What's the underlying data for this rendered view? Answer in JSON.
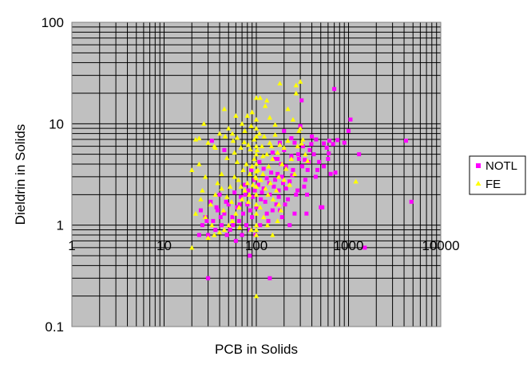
{
  "chart_data": {
    "type": "scatter",
    "xlabel": "PCB in Solids",
    "ylabel": "Dieldrin in Solids",
    "x_scale": "log",
    "y_scale": "log",
    "xlim": [
      1,
      10000
    ],
    "ylim": [
      0.1,
      100
    ],
    "x_tick_labels": [
      "1",
      "10",
      "100",
      "1000",
      "10000"
    ],
    "y_tick_labels": [
      "0.1",
      "1",
      "10",
      "100"
    ],
    "grid": true,
    "plot_background": "#c0c0c0",
    "legend_position": "right",
    "series": [
      {
        "name": "NOTL",
        "marker": "square",
        "color": "#ff00ff",
        "points": [
          [
            30,
            0.3
          ],
          [
            140,
            0.3
          ],
          [
            85,
            0.5
          ],
          [
            1500,
            0.6
          ],
          [
            4200,
            6.8
          ],
          [
            4800,
            1.7
          ],
          [
            1300,
            5.0
          ],
          [
            1050,
            11.0
          ],
          [
            1000,
            8.5
          ],
          [
            900,
            6.5
          ],
          [
            700,
            22.0
          ],
          [
            680,
            6.3
          ],
          [
            640,
            3.2
          ],
          [
            620,
            6.8
          ],
          [
            600,
            4.5
          ],
          [
            580,
            5.8
          ],
          [
            540,
            3.8
          ],
          [
            520,
            1.5
          ],
          [
            500,
            1.5
          ],
          [
            480,
            4.2
          ],
          [
            460,
            3.5
          ],
          [
            440,
            3.0
          ],
          [
            400,
            7.5
          ],
          [
            380,
            5.5
          ],
          [
            360,
            3.5
          ],
          [
            340,
            2.8
          ],
          [
            320,
            6.0
          ],
          [
            310,
            17.0
          ],
          [
            300,
            9.5
          ],
          [
            290,
            4.5
          ],
          [
            280,
            2.2
          ],
          [
            260,
            6.5
          ],
          [
            250,
            3.5
          ],
          [
            240,
            4.8
          ],
          [
            230,
            2.7
          ],
          [
            220,
            1.8
          ],
          [
            210,
            3.8
          ],
          [
            200,
            5.5
          ],
          [
            195,
            2.6
          ],
          [
            190,
            1.2
          ],
          [
            185,
            4.0
          ],
          [
            180,
            6.5
          ],
          [
            175,
            2.2
          ],
          [
            170,
            3.2
          ],
          [
            165,
            1.6
          ],
          [
            160,
            4.5
          ],
          [
            155,
            2.4
          ],
          [
            150,
            1.4
          ],
          [
            145,
            3.3
          ],
          [
            140,
            2.0
          ],
          [
            135,
            1.1
          ],
          [
            130,
            2.9
          ],
          [
            125,
            1.7
          ],
          [
            120,
            3.6
          ],
          [
            115,
            2.1
          ],
          [
            110,
            1.0
          ],
          [
            108,
            4.2
          ],
          [
            105,
            2.5
          ],
          [
            100,
            1.5
          ],
          [
            98,
            0.8
          ],
          [
            95,
            2.8
          ],
          [
            92,
            1.9
          ],
          [
            90,
            1.2
          ],
          [
            88,
            3.5
          ],
          [
            85,
            0.9
          ],
          [
            82,
            2.2
          ],
          [
            80,
            1.6
          ],
          [
            78,
            1.0
          ],
          [
            75,
            2.5
          ],
          [
            72,
            1.3
          ],
          [
            70,
            0.8
          ],
          [
            68,
            1.9
          ],
          [
            65,
            1.1
          ],
          [
            62,
            1.5
          ],
          [
            60,
            0.7
          ],
          [
            58,
            2.1
          ],
          [
            55,
            1.2
          ],
          [
            52,
            0.9
          ],
          [
            50,
            1.6
          ],
          [
            48,
            0.8
          ],
          [
            45,
            1.3
          ],
          [
            42,
            1.0
          ],
          [
            40,
            2.0
          ],
          [
            38,
            1.4
          ],
          [
            36,
            0.9
          ],
          [
            34,
            1.1
          ],
          [
            32,
            1.7
          ],
          [
            30,
            0.8
          ],
          [
            28,
            1.2
          ],
          [
            26,
            1.0
          ],
          [
            25,
            1.4
          ],
          [
            24,
            0.8
          ],
          [
            33,
            6.8
          ],
          [
            45,
            5.5
          ],
          [
            260,
            1.3
          ],
          [
            230,
            1.0
          ],
          [
            350,
            1.3
          ],
          [
            200,
            8.5
          ],
          [
            240,
            7.2
          ],
          [
            270,
            2.0
          ],
          [
            330,
            2.4
          ],
          [
            370,
            4.2
          ],
          [
            420,
            5.0
          ],
          [
            210,
            2.3
          ],
          [
            180,
            1.4
          ],
          [
            160,
            2.8
          ],
          [
            150,
            5.2
          ],
          [
            190,
            3.0
          ],
          [
            170,
            4.5
          ],
          [
            130,
            1.3
          ],
          [
            120,
            2.3
          ],
          [
            205,
            1.6
          ],
          [
            245,
            3.1
          ],
          [
            285,
            5.0
          ],
          [
            315,
            3.8
          ],
          [
            335,
            4.4
          ],
          [
            355,
            2.0
          ],
          [
            395,
            6.3
          ],
          [
            445,
            7.0
          ],
          [
            540,
            6.4
          ],
          [
            610,
            5.1
          ],
          [
            720,
            3.3
          ],
          [
            760,
            6.9
          ],
          [
            175,
            1.9
          ],
          [
            138,
            2.6
          ],
          [
            112,
            1.8
          ],
          [
            96,
            2.2
          ],
          [
            86,
            1.4
          ],
          [
            76,
            2.0
          ],
          [
            66,
            1.6
          ],
          [
            56,
            1.0
          ],
          [
            47,
            1.7
          ],
          [
            41,
            1.2
          ],
          [
            37,
            1.5
          ],
          [
            29,
            1.1
          ]
        ]
      },
      {
        "name": "FE",
        "marker": "triangle",
        "color": "#ffff00",
        "points": [
          [
            20,
            0.6
          ],
          [
            100,
            0.2
          ],
          [
            1200,
            2.7
          ],
          [
            270,
            24.0
          ],
          [
            300,
            26.0
          ],
          [
            180,
            25.0
          ],
          [
            110,
            18.0
          ],
          [
            100,
            18.0
          ],
          [
            90,
            13.0
          ],
          [
            130,
            17.0
          ],
          [
            125,
            15.0
          ],
          [
            80,
            12.0
          ],
          [
            60,
            12.0
          ],
          [
            55,
            8.0
          ],
          [
            70,
            10.0
          ],
          [
            45,
            14.0
          ],
          [
            22,
            7.0
          ],
          [
            24,
            7.2
          ],
          [
            27,
            10.0
          ],
          [
            30,
            6.5
          ],
          [
            35,
            6.0
          ],
          [
            40,
            8.0
          ],
          [
            46,
            7.5
          ],
          [
            50,
            9.0
          ],
          [
            56,
            6.8
          ],
          [
            62,
            7.3
          ],
          [
            68,
            5.8
          ],
          [
            75,
            8.5
          ],
          [
            82,
            6.2
          ],
          [
            88,
            9.5
          ],
          [
            95,
            7.0
          ],
          [
            102,
            5.5
          ],
          [
            108,
            8.0
          ],
          [
            115,
            6.0
          ],
          [
            122,
            7.5
          ],
          [
            130,
            5.0
          ],
          [
            140,
            6.5
          ],
          [
            150,
            4.5
          ],
          [
            160,
            7.8
          ],
          [
            170,
            5.2
          ],
          [
            180,
            6.2
          ],
          [
            190,
            4.0
          ],
          [
            200,
            5.8
          ],
          [
            210,
            3.6
          ],
          [
            220,
            6.8
          ],
          [
            240,
            4.5
          ],
          [
            260,
            3.2
          ],
          [
            280,
            6.0
          ],
          [
            300,
            9.0
          ],
          [
            320,
            7.0
          ],
          [
            340,
            5.0
          ],
          [
            95,
            4.5
          ],
          [
            90,
            3.8
          ],
          [
            85,
            3.2
          ],
          [
            80,
            2.6
          ],
          [
            75,
            2.2
          ],
          [
            70,
            1.8
          ],
          [
            65,
            1.5
          ],
          [
            60,
            1.3
          ],
          [
            55,
            1.1
          ],
          [
            50,
            1.0
          ],
          [
            45,
            0.9
          ],
          [
            40,
            0.85
          ],
          [
            35,
            0.8
          ],
          [
            30,
            0.75
          ],
          [
            28,
            1.2
          ],
          [
            32,
            1.6
          ],
          [
            36,
            2.0
          ],
          [
            38,
            2.6
          ],
          [
            42,
            3.2
          ],
          [
            44,
            1.4
          ],
          [
            48,
            1.9
          ],
          [
            52,
            2.4
          ],
          [
            58,
            3.0
          ],
          [
            64,
            2.8
          ],
          [
            72,
            3.5
          ],
          [
            78,
            4.0
          ],
          [
            84,
            2.0
          ],
          [
            92,
            2.5
          ],
          [
            98,
            3.0
          ],
          [
            104,
            3.5
          ],
          [
            112,
            2.8
          ],
          [
            118,
            3.2
          ],
          [
            126,
            2.3
          ],
          [
            134,
            2.0
          ],
          [
            142,
            2.6
          ],
          [
            152,
            1.8
          ],
          [
            165,
            2.2
          ],
          [
            175,
            1.6
          ],
          [
            185,
            1.4
          ],
          [
            100,
            1.0
          ],
          [
            100,
            1.3
          ],
          [
            100,
            1.6
          ],
          [
            100,
            2.0
          ],
          [
            100,
            2.4
          ],
          [
            100,
            2.9
          ],
          [
            100,
            3.4
          ],
          [
            100,
            4.0
          ],
          [
            100,
            5.0
          ],
          [
            100,
            6.0
          ],
          [
            100,
            7.5
          ],
          [
            100,
            9.0
          ],
          [
            100,
            11.0
          ],
          [
            100,
            0.8
          ],
          [
            100,
            0.9
          ],
          [
            20,
            3.5
          ],
          [
            24,
            4.0
          ],
          [
            26,
            2.2
          ],
          [
            33,
            1.0
          ],
          [
            25,
            1.8
          ],
          [
            22,
            1.3
          ],
          [
            66,
            0.95
          ],
          [
            88,
            0.9
          ],
          [
            120,
            1.2
          ],
          [
            150,
            0.8
          ],
          [
            230,
            2.5
          ],
          [
            250,
            11.0
          ],
          [
            270,
            20.0
          ],
          [
            290,
            8.5
          ],
          [
            310,
            6.4
          ],
          [
            360,
            4.3
          ],
          [
            220,
            14.0
          ],
          [
            140,
            11.5
          ],
          [
            160,
            9.8
          ],
          [
            58,
            5.2
          ],
          [
            48,
            4.6
          ],
          [
            36,
            5.8
          ],
          [
            28,
            3.0
          ],
          [
            62,
            4.2
          ],
          [
            74,
            6.6
          ],
          [
            86,
            5.6
          ],
          [
            118,
            4.8
          ],
          [
            136,
            3.8
          ],
          [
            146,
            6.0
          ],
          [
            200,
            2.8
          ],
          [
            175,
            3.0
          ],
          [
            42,
            2.3
          ],
          [
            54,
            1.7
          ],
          [
            68,
            2.4
          ],
          [
            82,
            1.7
          ],
          [
            110,
            1.5
          ],
          [
            132,
            1.0
          ],
          [
            170,
            1.1
          ]
        ]
      }
    ]
  }
}
